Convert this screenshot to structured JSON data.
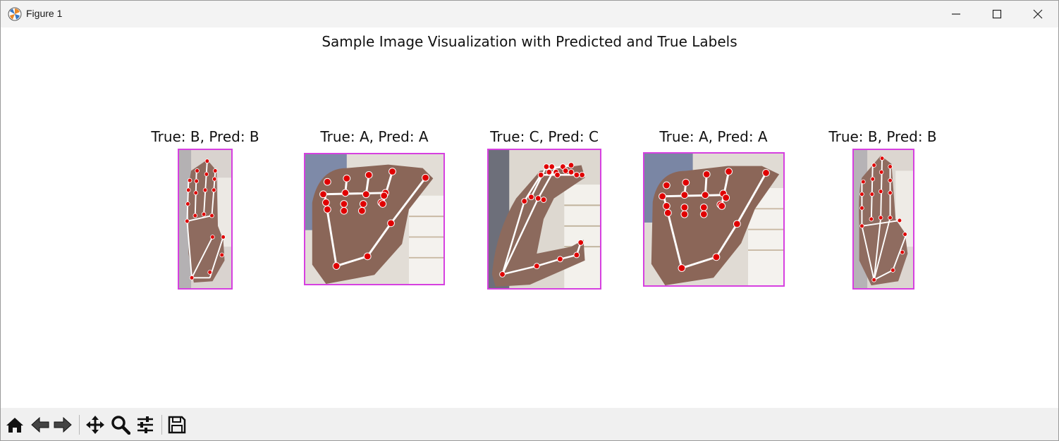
{
  "window": {
    "title": "Figure 1",
    "icon": "matplotlib-icon",
    "controls": [
      "minimize-icon",
      "maximize-icon",
      "close-icon"
    ]
  },
  "figure": {
    "suptitle": "Sample Image Visualization with Predicted and True Labels",
    "subplots": [
      {
        "title": "True: B, Pred: B",
        "true_label": "B",
        "pred_label": "B"
      },
      {
        "title": "True: A, Pred: A",
        "true_label": "A",
        "pred_label": "A"
      },
      {
        "title": "True: C, Pred: C",
        "true_label": "C",
        "pred_label": "C"
      },
      {
        "title": "True: A, Pred: A",
        "true_label": "A",
        "pred_label": "A"
      },
      {
        "title": "True: B, Pred: B",
        "true_label": "B",
        "pred_label": "B"
      }
    ],
    "colors": {
      "frame": "#d640e0",
      "landmark": "#e00000",
      "skeleton": "#ffffff",
      "skin": "#8a6658"
    }
  },
  "toolbar": {
    "tools": [
      "home-icon",
      "back-icon",
      "forward-icon",
      "pan-icon",
      "zoom-icon",
      "configure-subplots-icon",
      "save-icon"
    ]
  }
}
